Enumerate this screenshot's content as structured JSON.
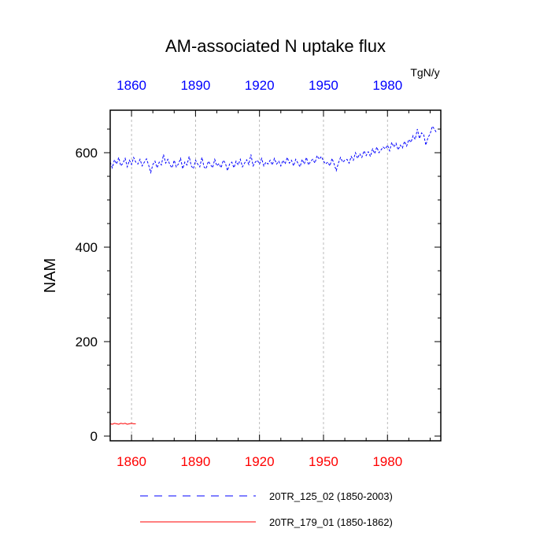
{
  "chart_data": {
    "type": "line",
    "title": "AM-associated N uptake flux",
    "ylabel": "NAM",
    "units": "TgN/y",
    "xlim": [
      1850,
      2005
    ],
    "ylim": [
      -10,
      690
    ],
    "x_ticks": [
      1860,
      1890,
      1920,
      1950,
      1980
    ],
    "y_ticks": [
      0,
      200,
      400,
      600
    ],
    "grid": "vertical dashed lines at x ticks",
    "colors": {
      "bottom_axis_labels": "#ff0000",
      "top_axis_labels": "#0000ff"
    },
    "series": [
      {
        "name": "20TR_125_02 (1850-2003)",
        "color": "#0000ff",
        "style": "dashed",
        "x": [
          1850,
          1851,
          1852,
          1853,
          1854,
          1855,
          1856,
          1857,
          1858,
          1859,
          1860,
          1861,
          1862,
          1863,
          1864,
          1865,
          1866,
          1867,
          1868,
          1869,
          1870,
          1871,
          1872,
          1873,
          1874,
          1875,
          1876,
          1877,
          1878,
          1879,
          1880,
          1881,
          1882,
          1883,
          1884,
          1885,
          1886,
          1887,
          1888,
          1889,
          1890,
          1891,
          1892,
          1893,
          1894,
          1895,
          1896,
          1897,
          1898,
          1899,
          1900,
          1901,
          1902,
          1903,
          1904,
          1905,
          1906,
          1907,
          1908,
          1909,
          1910,
          1911,
          1912,
          1913,
          1914,
          1915,
          1916,
          1917,
          1918,
          1919,
          1920,
          1921,
          1922,
          1923,
          1924,
          1925,
          1926,
          1927,
          1928,
          1929,
          1930,
          1931,
          1932,
          1933,
          1934,
          1935,
          1936,
          1937,
          1938,
          1939,
          1940,
          1941,
          1942,
          1943,
          1944,
          1945,
          1946,
          1947,
          1948,
          1949,
          1950,
          1951,
          1952,
          1953,
          1954,
          1955,
          1956,
          1957,
          1958,
          1959,
          1960,
          1961,
          1962,
          1963,
          1964,
          1965,
          1966,
          1967,
          1968,
          1969,
          1970,
          1971,
          1972,
          1973,
          1974,
          1975,
          1976,
          1977,
          1978,
          1979,
          1980,
          1981,
          1982,
          1983,
          1984,
          1985,
          1986,
          1987,
          1988,
          1989,
          1990,
          1991,
          1992,
          1993,
          1994,
          1995,
          1996,
          1997,
          1998,
          1999,
          2000,
          2001,
          2002,
          2003
        ],
        "values": [
          580,
          568,
          585,
          576,
          590,
          572,
          578,
          588,
          570,
          584,
          575,
          590,
          580,
          576,
          586,
          572,
          580,
          587,
          574,
          558,
          575,
          582,
          568,
          580,
          574,
          596,
          578,
          586,
          574,
          568,
          584,
          570,
          576,
          588,
          566,
          580,
          574,
          592,
          572,
          566,
          584,
          576,
          570,
          590,
          570,
          566,
          582,
          575,
          568,
          586,
          572,
          577,
          568,
          584,
          578,
          562,
          576,
          580,
          568,
          582,
          574,
          586,
          570,
          578,
          585,
          575,
          596,
          572,
          580,
          584,
          576,
          588,
          572,
          580,
          576,
          584,
          574,
          588,
          576,
          582,
          572,
          584,
          576,
          590,
          578,
          584,
          572,
          586,
          578,
          570,
          586,
          576,
          590,
          574,
          582,
          586,
          578,
          594,
          586,
          592,
          582,
          576,
          580,
          572,
          588,
          576,
          562,
          578,
          590,
          580,
          584,
          586,
          578,
          592,
          584,
          600,
          588,
          598,
          590,
          604,
          594,
          602,
          592,
          608,
          598,
          612,
          600,
          606,
          612,
          608,
          616,
          604,
          622,
          612,
          620,
          606,
          616,
          610,
          624,
          614,
          628,
          622,
          636,
          628,
          650,
          630,
          642,
          638,
          616,
          632,
          640,
          656,
          650,
          642
        ]
      },
      {
        "name": "20TR_179_01 (1850-1862)",
        "color": "#ff0000",
        "style": "solid",
        "x": [
          1850,
          1851,
          1852,
          1853,
          1854,
          1855,
          1856,
          1857,
          1858,
          1859,
          1860,
          1861,
          1862
        ],
        "values": [
          26,
          25,
          27,
          26,
          25,
          27,
          26,
          27,
          25,
          26,
          27,
          26,
          26
        ]
      }
    ]
  }
}
